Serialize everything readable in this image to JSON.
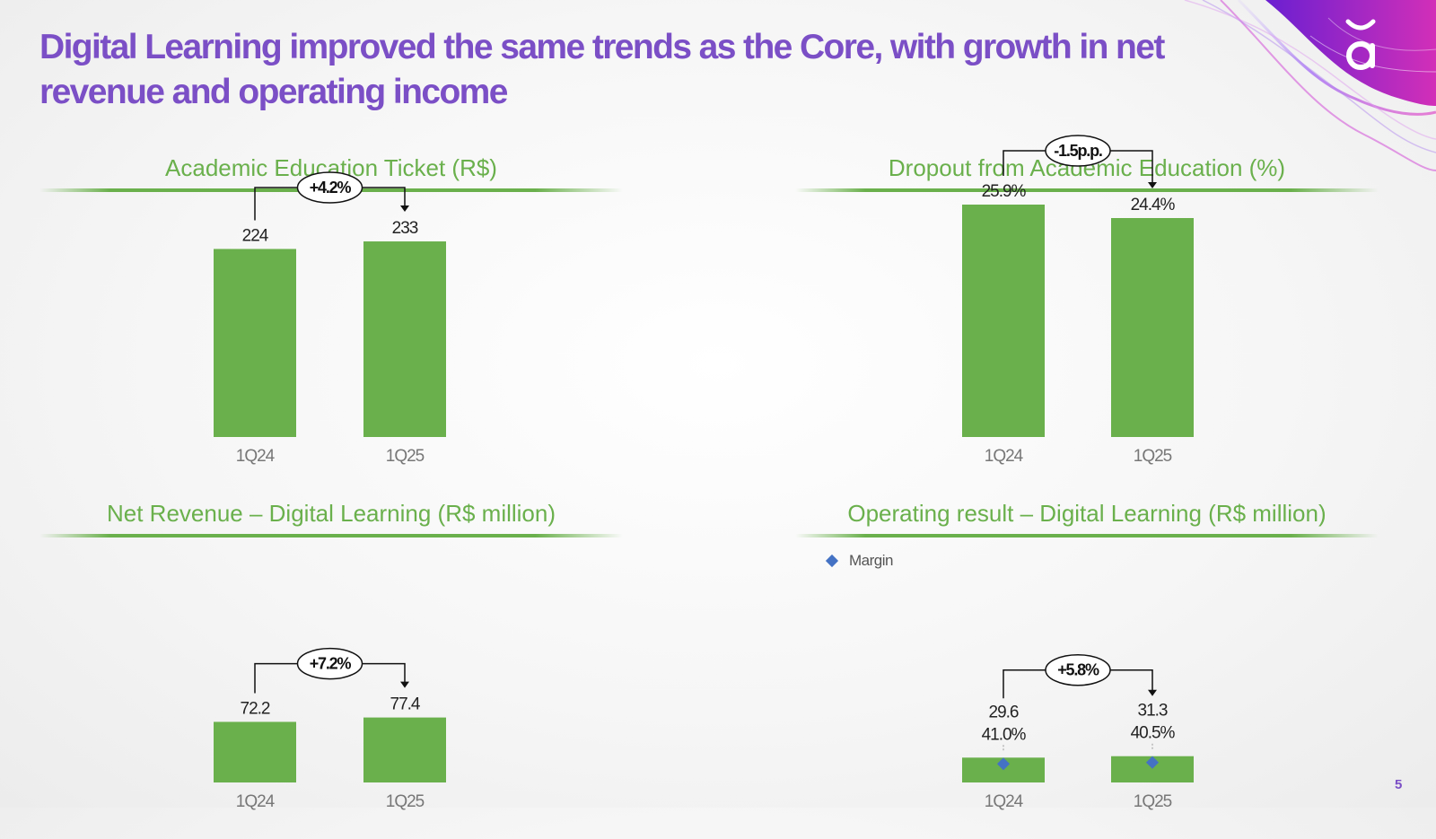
{
  "slide": {
    "title": "Digital Learning improved the same trends as the Core, with growth in net revenue and operating income",
    "page_number": "5"
  },
  "colors": {
    "title": "#7b4fc6",
    "accent": "#6ab04c",
    "bar": "#6ab04c",
    "marker": "#4472c4",
    "tick": "#777777"
  },
  "legend": {
    "margin_label": "Margin"
  },
  "chart_data": [
    {
      "id": "ticket",
      "type": "bar",
      "title": "Academic Education Ticket (R$)",
      "categories": [
        "1Q24",
        "1Q25"
      ],
      "values": [
        224,
        233
      ],
      "labels": [
        "224",
        "233"
      ],
      "change_label": "+4.2%",
      "ylim": [
        0,
        310
      ]
    },
    {
      "id": "dropout",
      "type": "bar",
      "title": "Dropout from Academic Education (%)",
      "categories": [
        "1Q24",
        "1Q25"
      ],
      "values": [
        25.9,
        24.4
      ],
      "labels": [
        "25.9%",
        "24.4%"
      ],
      "change_label": "-1.5p.p.",
      "ylim": [
        0,
        29
      ]
    },
    {
      "id": "net_revenue",
      "type": "bar",
      "title": "Net Revenue – Digital Learning (R$ million)",
      "categories": [
        "1Q24",
        "1Q25"
      ],
      "values": [
        72.2,
        77.4
      ],
      "labels": [
        "72.2",
        "77.4"
      ],
      "change_label": "+7.2%",
      "ylim": [
        0,
        310
      ]
    },
    {
      "id": "operating_result",
      "type": "bar",
      "title": "Operating result – Digital Learning (R$ million)",
      "categories": [
        "1Q24",
        "1Q25"
      ],
      "values": [
        29.6,
        31.3
      ],
      "labels": [
        "29.6",
        "31.3"
      ],
      "change_label": "+5.8%",
      "ylim": [
        0,
        310
      ],
      "margin_series": {
        "name": "Margin",
        "values": [
          41.0,
          40.5
        ],
        "labels": [
          "41.0%",
          "40.5%"
        ]
      }
    }
  ]
}
